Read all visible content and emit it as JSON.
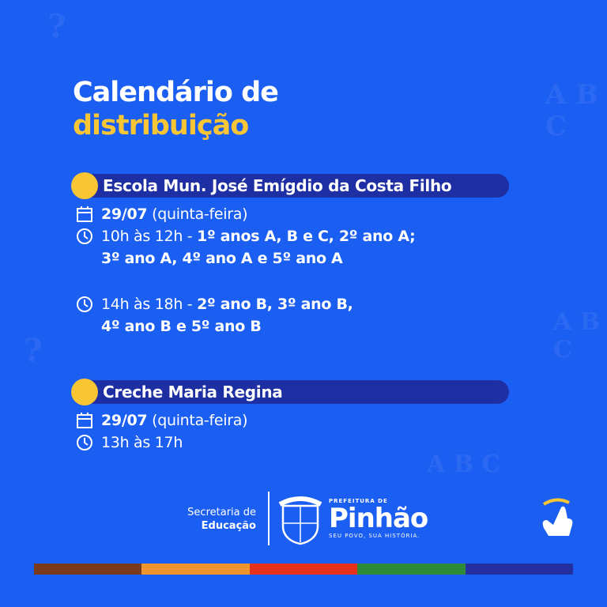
{
  "title": {
    "line1": "Calendário de",
    "line2": "distribuição"
  },
  "sections": [
    {
      "school": "Escola Mun. José Emígdio da Costa Filho",
      "date": "29/07",
      "weekday": "(quinta-feira)",
      "slots": [
        {
          "time": "10h às 12h - ",
          "classes_line1": "1º anos A, B e C, 2º ano A;",
          "classes_line2": "3º ano A, 4º ano A e 5º ano A"
        },
        {
          "time": "14h às 18h - ",
          "classes_line1": "2º ano B, 3º ano B,",
          "classes_line2": "4º ano B e 5º ano B"
        }
      ]
    },
    {
      "school": "Creche Maria Regina",
      "date": "29/07",
      "weekday": "(quinta-feira)",
      "slots": [
        {
          "time": "13h às 17h"
        }
      ]
    }
  ],
  "footer": {
    "secretaria_line1": "Secretaria de",
    "secretaria_line2": "Educação",
    "crest_text": "PINHÃO",
    "prefeitura": "PREFEITURA DE",
    "city": "Pinhão",
    "slogan": "SEU POVO, SUA HISTÓRIA."
  },
  "colors": {
    "background": "#1b5ef2",
    "accent_yellow": "#f8c534",
    "banner": "#1d2fa3",
    "stripes": [
      "#7a3a1e",
      "#f0952c",
      "#e8321b",
      "#2e8b3a",
      "#2430a0"
    ]
  }
}
